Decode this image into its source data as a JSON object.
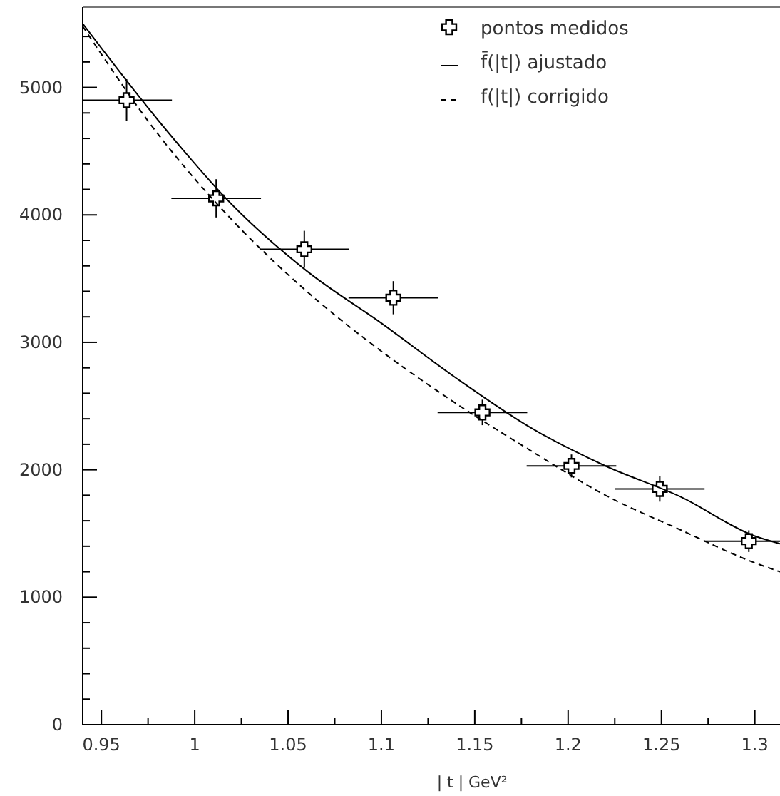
{
  "chart_data": {
    "type": "scatter",
    "xlabel": "| t | GeV²",
    "xlim": [
      0.94,
      1.3135
    ],
    "ylim": [
      0,
      5630
    ],
    "xticks": [
      0.95,
      {
        "value": 0.975,
        "label": null
      },
      1,
      {
        "value": 1.025,
        "label": null
      },
      1.05,
      {
        "value": 1.075,
        "label": null
      },
      1.1,
      {
        "value": 1.125,
        "label": null
      },
      1.15,
      {
        "value": 1.175,
        "label": null
      },
      1.2,
      {
        "value": 1.225,
        "label": null
      },
      1.25,
      {
        "value": 1.275,
        "label": null
      },
      1.3
    ],
    "yticks": [
      0,
      {
        "value": 200,
        "label": null
      },
      {
        "value": 400,
        "label": null
      },
      {
        "value": 600,
        "label": null
      },
      {
        "value": 800,
        "label": null
      },
      1000,
      {
        "value": 1200,
        "label": null
      },
      {
        "value": 1400,
        "label": null
      },
      {
        "value": 1600,
        "label": null
      },
      {
        "value": 1800,
        "label": null
      },
      2000,
      {
        "value": 2200,
        "label": null
      },
      {
        "value": 2400,
        "label": null
      },
      {
        "value": 2600,
        "label": null
      },
      {
        "value": 2800,
        "label": null
      },
      3000,
      {
        "value": 3200,
        "label": null
      },
      {
        "value": 3400,
        "label": null
      },
      {
        "value": 3600,
        "label": null
      },
      {
        "value": 3800,
        "label": null
      },
      4000,
      {
        "value": 4200,
        "label": null
      },
      {
        "value": 4400,
        "label": null
      },
      {
        "value": 4600,
        "label": null
      },
      {
        "value": 4800,
        "label": null
      },
      5000,
      {
        "value": 5200,
        "label": null
      },
      {
        "value": 5400,
        "label": null
      }
    ],
    "legend": "top right",
    "grid": false,
    "series": [
      {
        "name": "pontos medidos",
        "marker": "cross",
        "color": "#000000",
        "x": [
          0.9635,
          1.0115,
          1.0587,
          1.1064,
          1.1541,
          1.2018,
          1.2491,
          1.2968
        ],
        "values": [
          4900,
          4130,
          3730,
          3350,
          2450,
          2030,
          1850,
          1440
        ],
        "errors": [
          165,
          150,
          145,
          130,
          100,
          90,
          100,
          85
        ],
        "xerrors": [
          [
            0.94,
            0.9878
          ],
          0.024,
          0.024,
          0.024,
          0.024,
          0.024,
          0.024,
          [
            1.2728,
            1.3135
          ]
        ]
      },
      {
        "name": "f̄(|t|) ajustado",
        "type": "line",
        "line_style": "solid",
        "color": "#000000",
        "x": [
          0.94,
          0.98,
          1.02,
          1.06,
          1.1,
          1.14,
          1.18,
          1.22,
          1.26,
          1.3,
          1.3135
        ],
        "values": [
          5500,
          4750,
          4080,
          3560,
          3150,
          2720,
          2330,
          2030,
          1790,
          1480,
          1420
        ]
      },
      {
        "name": "f(|t|) corrigido",
        "type": "line",
        "line_style": "dashed",
        "color": "#000000",
        "x": [
          0.94,
          0.98,
          1.02,
          1.06,
          1.1,
          1.14,
          1.18,
          1.22,
          1.26,
          1.3,
          1.3135
        ],
        "values": [
          5480,
          4640,
          3960,
          3400,
          2930,
          2520,
          2150,
          1800,
          1530,
          1270,
          1200
        ]
      }
    ]
  }
}
